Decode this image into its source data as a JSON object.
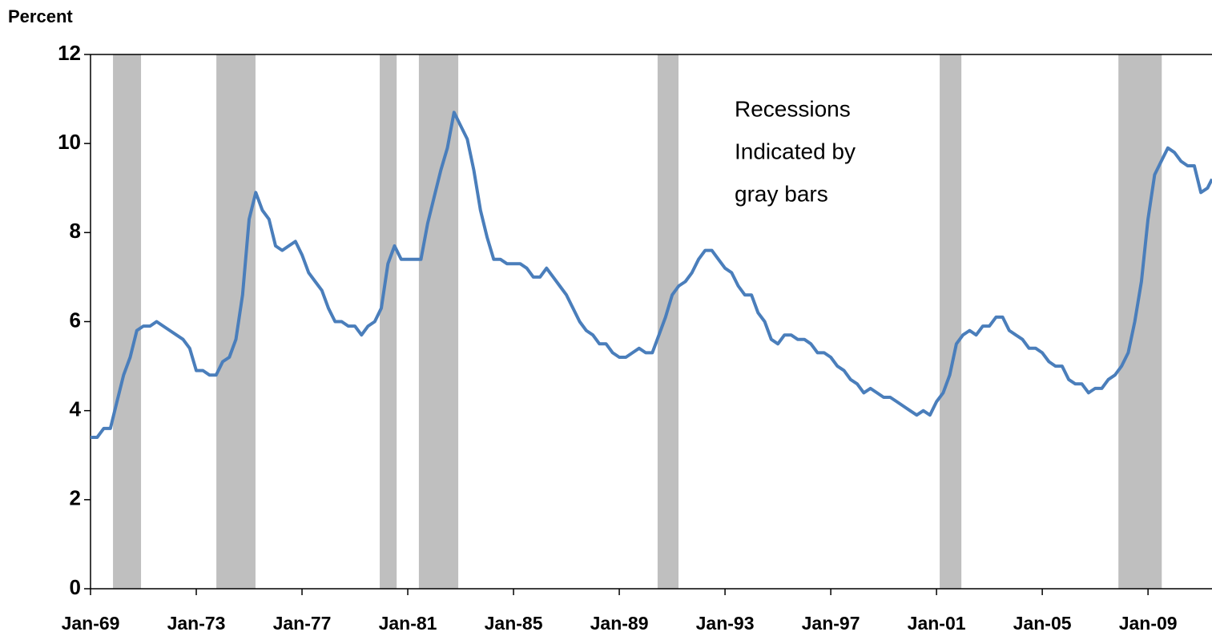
{
  "chart_data": {
    "type": "line",
    "y_axis_label": "Percent",
    "annotation": [
      "Recessions",
      "Indicated by",
      "gray bars"
    ],
    "xlim": [
      1969,
      2011.42
    ],
    "xticks": [
      {
        "value": 1969,
        "label": "Jan-69"
      },
      {
        "value": 1973,
        "label": "Jan-73"
      },
      {
        "value": 1977,
        "label": "Jan-77"
      },
      {
        "value": 1981,
        "label": "Jan-81"
      },
      {
        "value": 1985,
        "label": "Jan-85"
      },
      {
        "value": 1989,
        "label": "Jan-89"
      },
      {
        "value": 1993,
        "label": "Jan-93"
      },
      {
        "value": 1997,
        "label": "Jan-97"
      },
      {
        "value": 2001,
        "label": "Jan-01"
      },
      {
        "value": 2005,
        "label": "Jan-05"
      },
      {
        "value": 2009,
        "label": "Jan-09"
      }
    ],
    "ylim": [
      0,
      12
    ],
    "yticks": [
      0,
      2,
      4,
      6,
      8,
      10,
      12
    ],
    "recession_color": "#bfbfbf",
    "recessions": [
      [
        1969.85,
        1970.91
      ],
      [
        1973.76,
        1975.24
      ],
      [
        1979.94,
        1980.58
      ],
      [
        1981.42,
        1982.91
      ],
      [
        1990.45,
        1991.24
      ],
      [
        2001.12,
        2001.94
      ],
      [
        2007.88,
        2009.52
      ]
    ],
    "x": [
      1969,
      1969.25,
      1969.5,
      1969.75,
      1970,
      1970.25,
      1970.5,
      1970.75,
      1971,
      1971.25,
      1971.5,
      1971.75,
      1972,
      1972.25,
      1972.5,
      1972.75,
      1973,
      1973.25,
      1973.5,
      1973.75,
      1974,
      1974.25,
      1974.5,
      1974.75,
      1975,
      1975.25,
      1975.5,
      1975.75,
      1976,
      1976.25,
      1976.5,
      1976.75,
      1977,
      1977.25,
      1977.5,
      1977.75,
      1978,
      1978.25,
      1978.5,
      1978.75,
      1979,
      1979.25,
      1979.5,
      1979.75,
      1980,
      1980.25,
      1980.5,
      1980.75,
      1981,
      1981.25,
      1981.5,
      1981.75,
      1982,
      1982.25,
      1982.5,
      1982.75,
      1983,
      1983.25,
      1983.5,
      1983.75,
      1984,
      1984.25,
      1984.5,
      1984.75,
      1985,
      1985.25,
      1985.5,
      1985.75,
      1986,
      1986.25,
      1986.5,
      1986.75,
      1987,
      1987.25,
      1987.5,
      1987.75,
      1988,
      1988.25,
      1988.5,
      1988.75,
      1989,
      1989.25,
      1989.5,
      1989.75,
      1990,
      1990.25,
      1990.5,
      1990.75,
      1991,
      1991.25,
      1991.5,
      1991.75,
      1992,
      1992.25,
      1992.5,
      1992.75,
      1993,
      1993.25,
      1993.5,
      1993.75,
      1994,
      1994.25,
      1994.5,
      1994.75,
      1995,
      1995.25,
      1995.5,
      1995.75,
      1996,
      1996.25,
      1996.5,
      1996.75,
      1997,
      1997.25,
      1997.5,
      1997.75,
      1998,
      1998.25,
      1998.5,
      1998.75,
      1999,
      1999.25,
      1999.5,
      1999.75,
      2000,
      2000.25,
      2000.5,
      2000.75,
      2001,
      2001.25,
      2001.5,
      2001.75,
      2002,
      2002.25,
      2002.5,
      2002.75,
      2003,
      2003.25,
      2003.5,
      2003.75,
      2004,
      2004.25,
      2004.5,
      2004.75,
      2005,
      2005.25,
      2005.5,
      2005.75,
      2006,
      2006.25,
      2006.5,
      2006.75,
      2007,
      2007.25,
      2007.5,
      2007.75,
      2008,
      2008.25,
      2008.5,
      2008.75,
      2009,
      2009.25,
      2009.5,
      2009.75,
      2010,
      2010.25,
      2010.5,
      2010.75,
      2011,
      2011.25,
      2011.42
    ],
    "series": [
      {
        "color": "#4a7ebb",
        "values": [
          3.4,
          3.4,
          3.6,
          3.6,
          4.2,
          4.8,
          5.2,
          5.8,
          5.9,
          5.9,
          6.0,
          5.9,
          5.8,
          5.7,
          5.6,
          5.4,
          4.9,
          4.9,
          4.8,
          4.8,
          5.1,
          5.2,
          5.6,
          6.6,
          8.3,
          8.9,
          8.5,
          8.3,
          7.7,
          7.6,
          7.7,
          7.8,
          7.5,
          7.1,
          6.9,
          6.7,
          6.3,
          6.0,
          6.0,
          5.9,
          5.9,
          5.7,
          5.9,
          6.0,
          6.3,
          7.3,
          7.7,
          7.4,
          7.4,
          7.4,
          7.4,
          8.2,
          8.8,
          9.4,
          9.9,
          10.7,
          10.4,
          10.1,
          9.4,
          8.5,
          7.9,
          7.4,
          7.4,
          7.3,
          7.3,
          7.3,
          7.2,
          7.0,
          7.0,
          7.2,
          7.0,
          6.8,
          6.6,
          6.3,
          6.0,
          5.8,
          5.7,
          5.5,
          5.5,
          5.3,
          5.2,
          5.2,
          5.3,
          5.4,
          5.3,
          5.3,
          5.7,
          6.1,
          6.6,
          6.8,
          6.9,
          7.1,
          7.4,
          7.6,
          7.6,
          7.4,
          7.2,
          7.1,
          6.8,
          6.6,
          6.6,
          6.2,
          6.0,
          5.6,
          5.5,
          5.7,
          5.7,
          5.6,
          5.6,
          5.5,
          5.3,
          5.3,
          5.2,
          5.0,
          4.9,
          4.7,
          4.6,
          4.4,
          4.5,
          4.4,
          4.3,
          4.3,
          4.2,
          4.1,
          4.0,
          3.9,
          4.0,
          3.9,
          4.2,
          4.4,
          4.8,
          5.5,
          5.7,
          5.8,
          5.7,
          5.9,
          5.9,
          6.1,
          6.1,
          5.8,
          5.7,
          5.6,
          5.4,
          5.4,
          5.3,
          5.1,
          5.0,
          5.0,
          4.7,
          4.6,
          4.6,
          4.4,
          4.5,
          4.5,
          4.7,
          4.8,
          5.0,
          5.3,
          6.0,
          6.9,
          8.3,
          9.3,
          9.6,
          9.9,
          9.8,
          9.6,
          9.5,
          9.5,
          8.9,
          9.0,
          9.2
        ]
      }
    ]
  }
}
